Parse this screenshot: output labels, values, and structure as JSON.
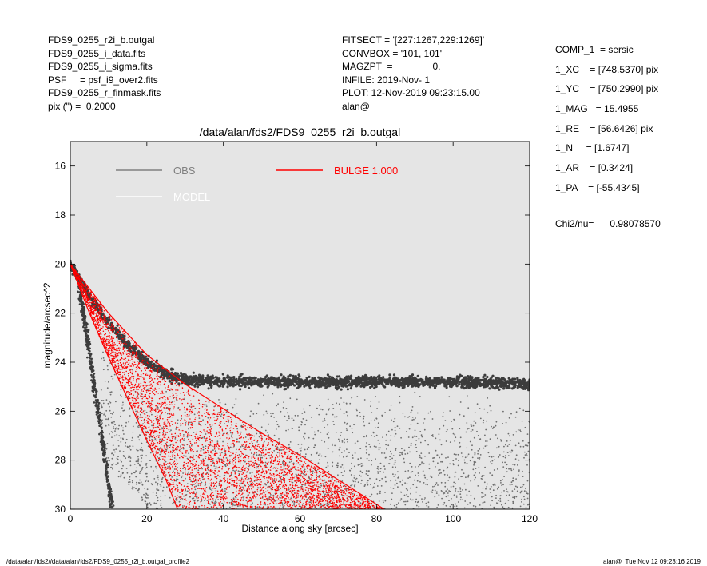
{
  "header_left": [
    "FDS9_0255_r2i_b.outgal",
    "FDS9_0255_i_data.fits",
    "FDS9_0255_i_sigma.fits",
    "PSF     = psf_i9_over2.fits",
    "FDS9_0255_r_finmask.fits",
    "pix (\") =  0.2000"
  ],
  "header_mid": [
    "FITSECT = '[227:1267,229:1269]'",
    "CONVBOX = '101, 101'",
    "MAGZPT  =               0.",
    "INFILE: 2019-Nov- 1",
    "PLOT: 12-Nov-2019 09:23:15.00",
    "alan@"
  ],
  "header_right": [
    "COMP_1  = sersic",
    "1_XC    = [748.5370] pix",
    "1_YC    = [750.2990] pix",
    "1_MAG   = 15.4955",
    "1_RE    = [56.6426] pix",
    "1_N     = [1.6747]",
    "1_AR    = [0.3424]",
    "1_PA    = [-55.4345]"
  ],
  "chi2": "Chi2/nu=      0.98078570",
  "footer": {
    "left": "/data/alan/fds2//data/alan/fds2/FDS9_0255_r2i_b.outgal_profile2",
    "right": "alan@  Tue Nov 12 09:23:16 2019"
  },
  "colors": {
    "plot_bg": "#e5e5e5",
    "obs": "#808080",
    "model": "#ffffff",
    "bulge": "#ff0000",
    "points_dark": "#3c3c3c",
    "points_mid": "#6e6e6e"
  },
  "chart_data": {
    "type": "scatter",
    "title": "/data/alan/fds2/FDS9_0255_r2i_b.outgal",
    "xlabel": "Distance along sky [arcsec]",
    "ylabel": "magnitude/arcsec^2",
    "xlim": [
      0,
      120
    ],
    "ylim": [
      30,
      15
    ],
    "y_inverted": true,
    "x_ticks": [
      0,
      20,
      40,
      60,
      80,
      100,
      120
    ],
    "y_ticks": [
      16,
      18,
      20,
      22,
      24,
      26,
      28,
      30
    ],
    "legend": [
      {
        "label": "OBS",
        "color": "#808080"
      },
      {
        "label": "MODEL",
        "color": "#ffffff"
      },
      {
        "label": "BULGE  1.000",
        "color": "#ff0000"
      }
    ],
    "series": [
      {
        "name": "OBS",
        "description_points": [
          [
            0,
            20.0
          ],
          [
            5,
            21.3
          ],
          [
            10,
            22.4
          ],
          [
            15,
            23.3
          ],
          [
            20,
            24.0
          ],
          [
            25,
            24.5
          ],
          [
            30,
            24.7
          ],
          [
            40,
            24.8
          ],
          [
            60,
            24.8
          ],
          [
            80,
            24.8
          ],
          [
            100,
            24.8
          ],
          [
            120,
            24.9
          ]
        ]
      },
      {
        "name": "BULGE  1.000",
        "envelope_upper": [
          [
            0,
            20.0
          ],
          [
            10,
            22.0
          ],
          [
            20,
            23.7
          ],
          [
            30,
            24.9
          ],
          [
            40,
            25.9
          ],
          [
            50,
            26.9
          ],
          [
            60,
            27.8
          ],
          [
            70,
            28.8
          ],
          [
            82,
            30.0
          ]
        ],
        "envelope_lower": [
          [
            0,
            20.0
          ],
          [
            5,
            22.0
          ],
          [
            10,
            23.8
          ],
          [
            15,
            25.5
          ],
          [
            20,
            27.2
          ],
          [
            25,
            28.8
          ],
          [
            28,
            30.0
          ]
        ]
      }
    ]
  }
}
